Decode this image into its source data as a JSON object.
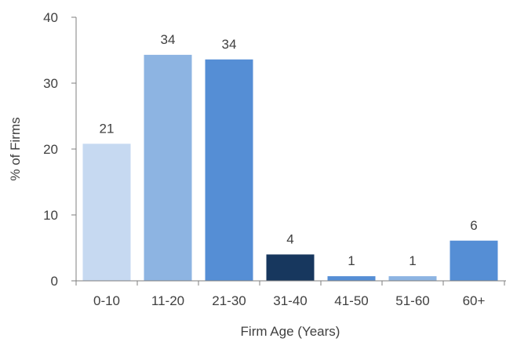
{
  "chart_data": {
    "type": "bar",
    "title": "",
    "xlabel": "Firm Age (Years)",
    "ylabel": "% of Firms",
    "categories": [
      "0-10",
      "11-20",
      "21-30",
      "31-40",
      "41-50",
      "51-60",
      "60+"
    ],
    "values": [
      20.8,
      34.3,
      33.6,
      4.0,
      0.7,
      0.7,
      6.1
    ],
    "data_labels": [
      "21",
      "34",
      "34",
      "4",
      "1",
      "1",
      "6"
    ],
    "bar_colors": [
      "#c6d9f1",
      "#8db4e2",
      "#558ed5",
      "#17375e",
      "#558ed5",
      "#8db4e2",
      "#558ed5"
    ],
    "ylim": [
      0,
      40
    ],
    "yticks": [
      "0",
      "10",
      "20",
      "30",
      "40"
    ],
    "grid": false,
    "legend": "none"
  }
}
